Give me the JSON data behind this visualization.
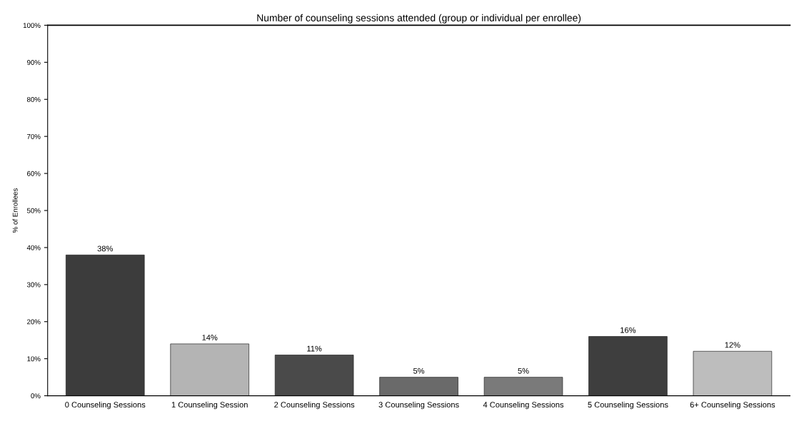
{
  "chart_data": {
    "type": "bar",
    "title": "Number of counseling sessions attended (group or individual per enrollee)",
    "ylabel": "% of Enrollees",
    "categories": [
      "0 Counseling Sessions",
      "1 Counseling Session",
      "2 Counseling Sessions",
      "3 Counseling Sessions",
      "4 Counseling Sessions",
      "5 Counseling Sessions",
      "6+ Counseling Sessions"
    ],
    "values": [
      38,
      14,
      11,
      5,
      5,
      16,
      12
    ],
    "value_labels": [
      "38%",
      "14%",
      "11%",
      "5%",
      "5%",
      "16%",
      "12%"
    ],
    "colors": [
      "#3c3c3c",
      "#b4b4b4",
      "#4a4a4a",
      "#6a6a6a",
      "#7a7a7a",
      "#3e3e3e",
      "#bdbdbd"
    ],
    "ylim": [
      0,
      100
    ],
    "yticks": [
      {
        "value": 0,
        "label": "0%"
      },
      {
        "value": 10,
        "label": "10%"
      },
      {
        "value": 20,
        "label": "20%"
      },
      {
        "value": 30,
        "label": "30%"
      },
      {
        "value": 40,
        "label": "40%"
      },
      {
        "value": 50,
        "label": "50%"
      },
      {
        "value": 60,
        "label": "60%"
      },
      {
        "value": 70,
        "label": "70%"
      },
      {
        "value": 80,
        "label": "80%"
      },
      {
        "value": 90,
        "label": "90%"
      },
      {
        "value": 100,
        "label": "100%"
      }
    ],
    "grid": false
  }
}
